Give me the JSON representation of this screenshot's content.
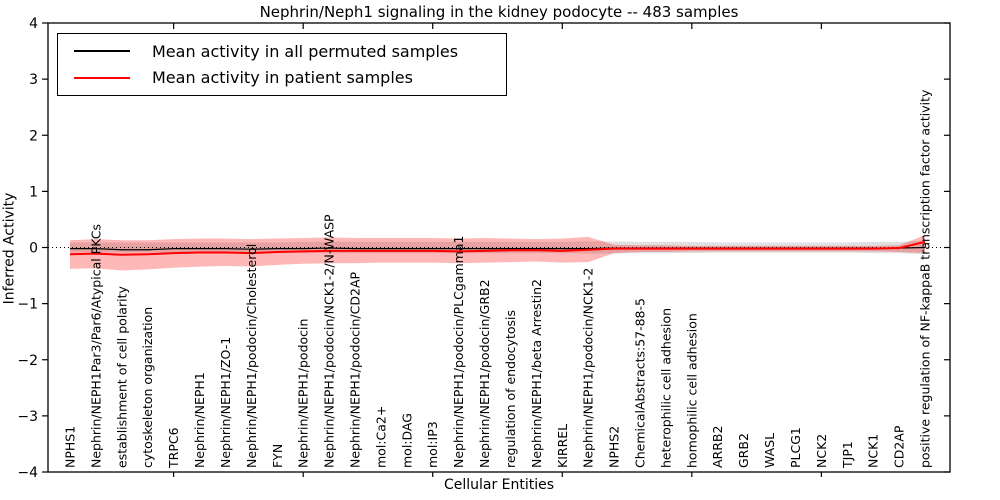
{
  "title": "Nephrin/Neph1 signaling in the kidney podocyte -- 483 samples",
  "axes": {
    "ylabel": "Inferred Activity",
    "xlabel": "Cellular Entities",
    "yticks": [
      "4",
      "3",
      "2",
      "1",
      "0",
      "−1",
      "−2",
      "−3",
      "−4"
    ],
    "ytick_values": [
      4,
      3,
      2,
      1,
      0,
      -1,
      -2,
      -3,
      -4
    ],
    "major_xtick_indices": [
      4,
      9,
      14,
      19,
      24,
      29
    ]
  },
  "legend": {
    "position": "upper left",
    "entries": [
      {
        "label": "Mean activity in all permuted samples",
        "color": "#000000"
      },
      {
        "label": "Mean activity in patient samples",
        "color": "#ff0000"
      }
    ]
  },
  "chart_data": {
    "type": "line",
    "title": "Nephrin/Neph1 signaling in the kidney podocyte -- 483 samples",
    "xlabel": "Cellular Entities",
    "ylabel": "Inferred Activity",
    "ylim": [
      -4,
      4
    ],
    "grid": false,
    "zero_line": true,
    "legend_position": "upper left",
    "categories": [
      "NPHS1",
      "Nephrin/NEPH1Par3/Par6/Atypical PKCs",
      "establishment of cell polarity",
      "cytoskeleton organization",
      "TRPC6",
      "Nephrin/NEPH1",
      "Nephrin/NEPH1/ZO-1",
      "Nephrin/NEPH1/podocin/Cholesterol",
      "FYN",
      "Nephrin/NEPH1/podocin",
      "Nephrin/NEPH1/podocin/NCK1-2/N-WASP",
      "Nephrin/NEPH1/podocin/CD2AP",
      "mol:Ca2+",
      "mol:DAG",
      "mol:IP3",
      "Nephrin/NEPH1/podocin/PLCgamma1",
      "Nephrin/NEPH1/podocin/GRB2",
      "regulation of endocytosis",
      "Nephrin/NEPH1/beta Arrestin2",
      "KIRREL",
      "Nephrin/NEPH1/podocin/NCK1-2",
      "NPHS2",
      "ChemicalAbstracts:57-88-5",
      "heterophilic cell adhesion",
      "homophilic cell adhesion",
      "ARRB2",
      "GRB2",
      "WASL",
      "PLCG1",
      "NCK2",
      "TJP1",
      "NCK1",
      "CD2AP",
      "positive regulation of NF-kappaB transcription factor activity"
    ],
    "series": [
      {
        "name": "Mean activity in all permuted samples",
        "color": "#000000",
        "style": "solid",
        "values": [
          -0.02,
          -0.02,
          -0.04,
          -0.04,
          -0.02,
          -0.02,
          -0.02,
          -0.03,
          -0.02,
          -0.02,
          -0.01,
          -0.02,
          -0.02,
          -0.02,
          -0.02,
          -0.02,
          -0.02,
          -0.02,
          -0.02,
          -0.02,
          -0.02,
          -0.01,
          -0.01,
          -0.01,
          -0.01,
          -0.01,
          -0.01,
          -0.01,
          -0.01,
          -0.01,
          -0.01,
          -0.01,
          -0.01,
          0.0
        ]
      },
      {
        "name": "Mean activity in patient samples",
        "color": "#ff0000",
        "style": "solid",
        "values": [
          -0.12,
          -0.11,
          -0.13,
          -0.12,
          -0.1,
          -0.09,
          -0.09,
          -0.1,
          -0.08,
          -0.07,
          -0.06,
          -0.06,
          -0.06,
          -0.06,
          -0.06,
          -0.07,
          -0.06,
          -0.05,
          -0.05,
          -0.06,
          -0.04,
          -0.02,
          -0.02,
          -0.02,
          -0.02,
          -0.02,
          -0.02,
          -0.02,
          -0.02,
          -0.02,
          -0.02,
          -0.02,
          -0.01,
          0.1
        ]
      }
    ],
    "bands": [
      {
        "name": "permuted-samples-band",
        "color": "#999999",
        "opacity": 0.3,
        "upper": [
          0.09,
          0.09,
          0.09,
          0.09,
          0.09,
          0.09,
          0.09,
          0.09,
          0.09,
          0.1,
          0.1,
          0.1,
          0.1,
          0.1,
          0.1,
          0.1,
          0.1,
          0.1,
          0.1,
          0.1,
          0.11,
          0.11,
          0.1,
          0.1,
          0.1,
          0.09,
          0.09,
          0.09,
          0.09,
          0.09,
          0.09,
          0.1,
          0.1,
          0.12
        ],
        "lower": [
          -0.09,
          -0.09,
          -0.09,
          -0.09,
          -0.09,
          -0.09,
          -0.09,
          -0.09,
          -0.09,
          -0.1,
          -0.1,
          -0.1,
          -0.1,
          -0.1,
          -0.1,
          -0.1,
          -0.1,
          -0.1,
          -0.1,
          -0.1,
          -0.11,
          -0.11,
          -0.1,
          -0.1,
          -0.1,
          -0.09,
          -0.09,
          -0.09,
          -0.09,
          -0.09,
          -0.09,
          -0.1,
          -0.1,
          -0.12
        ]
      },
      {
        "name": "patient-samples-band",
        "color": "#ff0000",
        "opacity": 0.28,
        "upper": [
          0.13,
          0.15,
          0.13,
          0.13,
          0.15,
          0.16,
          0.16,
          0.15,
          0.16,
          0.17,
          0.18,
          0.17,
          0.17,
          0.17,
          0.17,
          0.16,
          0.17,
          0.16,
          0.15,
          0.16,
          0.19,
          0.05,
          0.04,
          0.04,
          0.03,
          0.03,
          0.03,
          0.03,
          0.03,
          0.03,
          0.03,
          0.03,
          0.04,
          0.22
        ],
        "lower": [
          -0.38,
          -0.37,
          -0.41,
          -0.39,
          -0.36,
          -0.34,
          -0.33,
          -0.34,
          -0.31,
          -0.29,
          -0.28,
          -0.28,
          -0.27,
          -0.27,
          -0.27,
          -0.28,
          -0.27,
          -0.26,
          -0.25,
          -0.27,
          -0.26,
          -0.1,
          -0.08,
          -0.08,
          -0.07,
          -0.07,
          -0.07,
          -0.07,
          -0.07,
          -0.07,
          -0.07,
          -0.07,
          -0.08,
          -0.1
        ]
      }
    ]
  }
}
